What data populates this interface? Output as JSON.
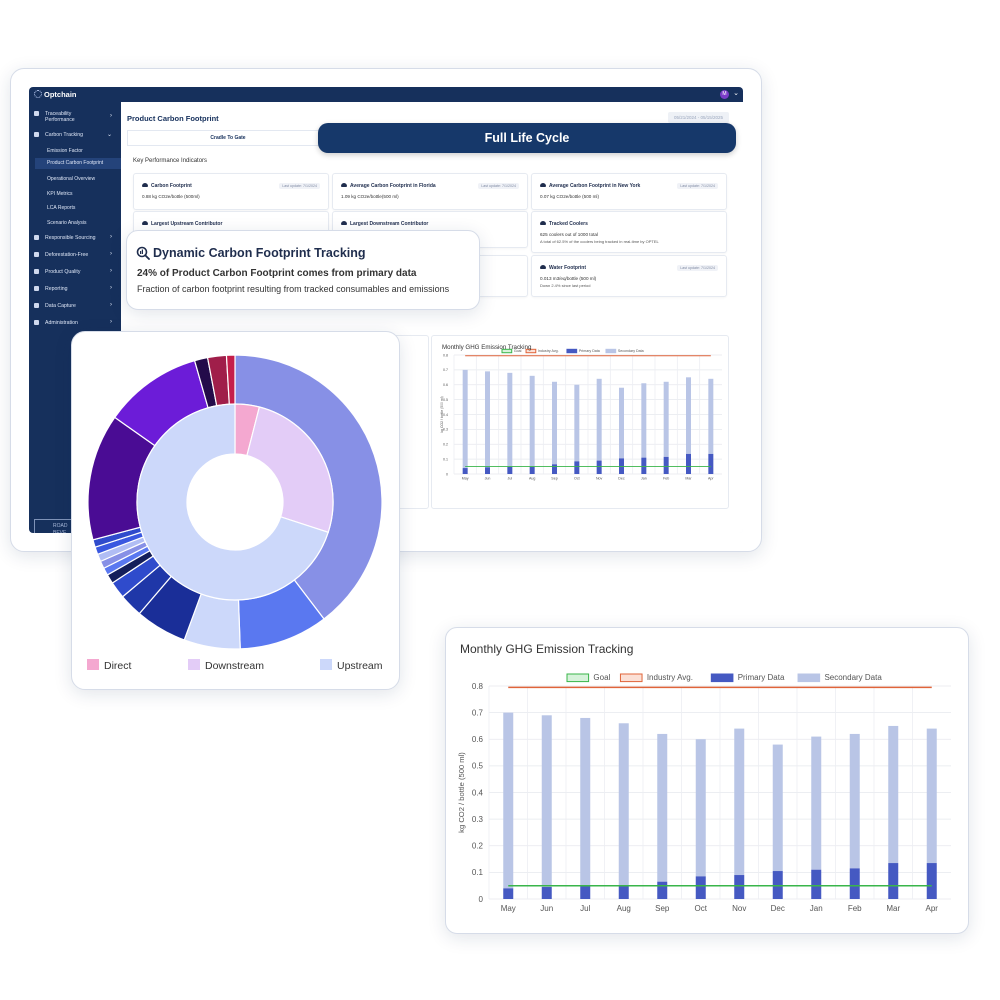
{
  "app": {
    "logo_text": "Optchain",
    "avatar_initial": "M",
    "page_title": "Product Carbon Footprint",
    "date_range": "05/21/2024 - 05/15/2025",
    "tab_cradle": "Cradle To Gate",
    "kpi_heading": "Key Performance Indicators",
    "sidebar": {
      "items": [
        {
          "label": "Traceability Performance"
        },
        {
          "label": "Carbon Tracking"
        },
        {
          "label": "Responsible Sourcing"
        },
        {
          "label": "Deforestation-Free"
        },
        {
          "label": "Product Quality"
        },
        {
          "label": "Reporting"
        },
        {
          "label": "Data Capture"
        },
        {
          "label": "Administration"
        }
      ],
      "sub_items": [
        {
          "label": "Emission Factor"
        },
        {
          "label": "Product Carbon Footprint"
        },
        {
          "label": "Operational Overview"
        },
        {
          "label": "KPI Metrics"
        },
        {
          "label": "LCA Reports"
        },
        {
          "label": "Scenario Analysis"
        }
      ],
      "footer_logo": "ROAD BEVE"
    },
    "kpis": [
      {
        "title": "Carbon Footprint",
        "value": "0.88 kg CO2e/bottle (500ml)",
        "note": "",
        "updated": "Last update: 7/1/2024"
      },
      {
        "title": "Average Carbon Footprint in Florida",
        "value": "1.09 kg CO2e/bottle(500 ml)",
        "note": "",
        "updated": "Last update: 7/1/2024"
      },
      {
        "title": "Average Carbon Footprint in New York",
        "value": "0.07 kg CO2e/bottle (500 ml)",
        "note": "",
        "updated": "Last update: 7/1/2024"
      },
      {
        "title": "Largest Upstream Contributor",
        "value": "",
        "note": "",
        "updated": ""
      },
      {
        "title": "Largest Downstream Contributor",
        "value": "",
        "note": "",
        "updated": ""
      },
      {
        "title": "Tracked Coolers",
        "value": "625 coolers out of 1000 total",
        "note": "A total of 62.5% of the coolers being tracked in real-time by OPTEL",
        "updated": ""
      },
      {
        "title": "Water Footprint",
        "value": "0.013 m3/eq/bottle (500 ml)",
        "note": "Down 2.4% since last period",
        "updated": "Last update: 7/1/2024"
      }
    ],
    "mini_chart_title": "Monthly GHG Emission Tracking"
  },
  "overlay": {
    "full_life_cycle": "Full Life Cycle",
    "tracking_title": "Dynamic Carbon Footprint Tracking",
    "tracking_stat": "24% of Product Carbon Footprint comes from primary data",
    "tracking_desc": "Fraction of carbon footprint resulting from tracked consumables and emissions"
  },
  "donut": {
    "legend": [
      {
        "label": "Direct",
        "color": "#f4a8d0"
      },
      {
        "label": "Downstream",
        "color": "#e3ccf7"
      },
      {
        "label": "Upstream",
        "color": "#ccd8fa"
      }
    ],
    "inner": [
      {
        "value": 4,
        "color": "#f4a8d0"
      },
      {
        "value": 26,
        "color": "#e3ccf7"
      },
      {
        "value": 70,
        "color": "#ccd8fa"
      }
    ],
    "outer": [
      {
        "value": 38.5,
        "color": "#8790e6"
      },
      {
        "value": 9.5,
        "color": "#5a78f0"
      },
      {
        "value": 6,
        "color": "#ccd8fa"
      },
      {
        "value": 5.5,
        "color": "#1a2e98"
      },
      {
        "value": 2.5,
        "color": "#1f37a8"
      },
      {
        "value": 1.8,
        "color": "#2f4bcc"
      },
      {
        "value": 1.0,
        "color": "#141e5a"
      },
      {
        "value": 0.8,
        "color": "#5a78f0"
      },
      {
        "value": 0.8,
        "color": "#8790e6"
      },
      {
        "value": 0.8,
        "color": "#b0bdf4"
      },
      {
        "value": 0.8,
        "color": "#3a58e0"
      },
      {
        "value": 0.8,
        "color": "#2f4bcc"
      },
      {
        "value": 13.5,
        "color": "#4a0c94"
      },
      {
        "value": 10.5,
        "color": "#6c1cd8"
      },
      {
        "value": 1.4,
        "color": "#230b4a"
      },
      {
        "value": 2.0,
        "color": "#a01e4a"
      },
      {
        "value": 0.9,
        "color": "#c41e4a"
      }
    ]
  },
  "chart_data": [
    {
      "type": "bar",
      "title": "Monthly GHG Emission Tracking",
      "ylabel": "kg CO2 / bottle (500 ml)",
      "xlabel": "",
      "categories": [
        "May",
        "Jun",
        "Jul",
        "Aug",
        "Sep",
        "Oct",
        "Nov",
        "Dec",
        "Jan",
        "Feb",
        "Mar",
        "Apr"
      ],
      "stacked": true,
      "ylim": [
        0,
        0.8
      ],
      "yticks": [
        "0",
        "0.1",
        "0.2",
        "0.3",
        "0.4",
        "0.5",
        "0.6",
        "0.7",
        "0.8"
      ],
      "series": [
        {
          "name": "Primary Data",
          "kind": "bar",
          "color": "#4559c2",
          "values": [
            0.04,
            0.045,
            0.05,
            0.05,
            0.065,
            0.085,
            0.09,
            0.105,
            0.11,
            0.115,
            0.135,
            0.135
          ]
        },
        {
          "name": "Secondary Data",
          "kind": "bar",
          "color": "#b9c5e6",
          "values": [
            0.66,
            0.645,
            0.63,
            0.61,
            0.555,
            0.515,
            0.55,
            0.475,
            0.5,
            0.505,
            0.515,
            0.505
          ]
        },
        {
          "name": "Goal",
          "kind": "line",
          "color": "#39b54a",
          "values": [
            0.05,
            0.05,
            0.05,
            0.05,
            0.05,
            0.05,
            0.05,
            0.05,
            0.05,
            0.05,
            0.05,
            0.05
          ]
        },
        {
          "name": "Industry Avg.",
          "kind": "line",
          "color": "#e0643a",
          "values": [
            0.795,
            0.795,
            0.795,
            0.795,
            0.795,
            0.795,
            0.795,
            0.795,
            0.795,
            0.795,
            0.795,
            0.795
          ]
        }
      ],
      "legend": [
        "Goal",
        "Industry Avg.",
        "Primary Data",
        "Secondary Data"
      ]
    }
  ]
}
